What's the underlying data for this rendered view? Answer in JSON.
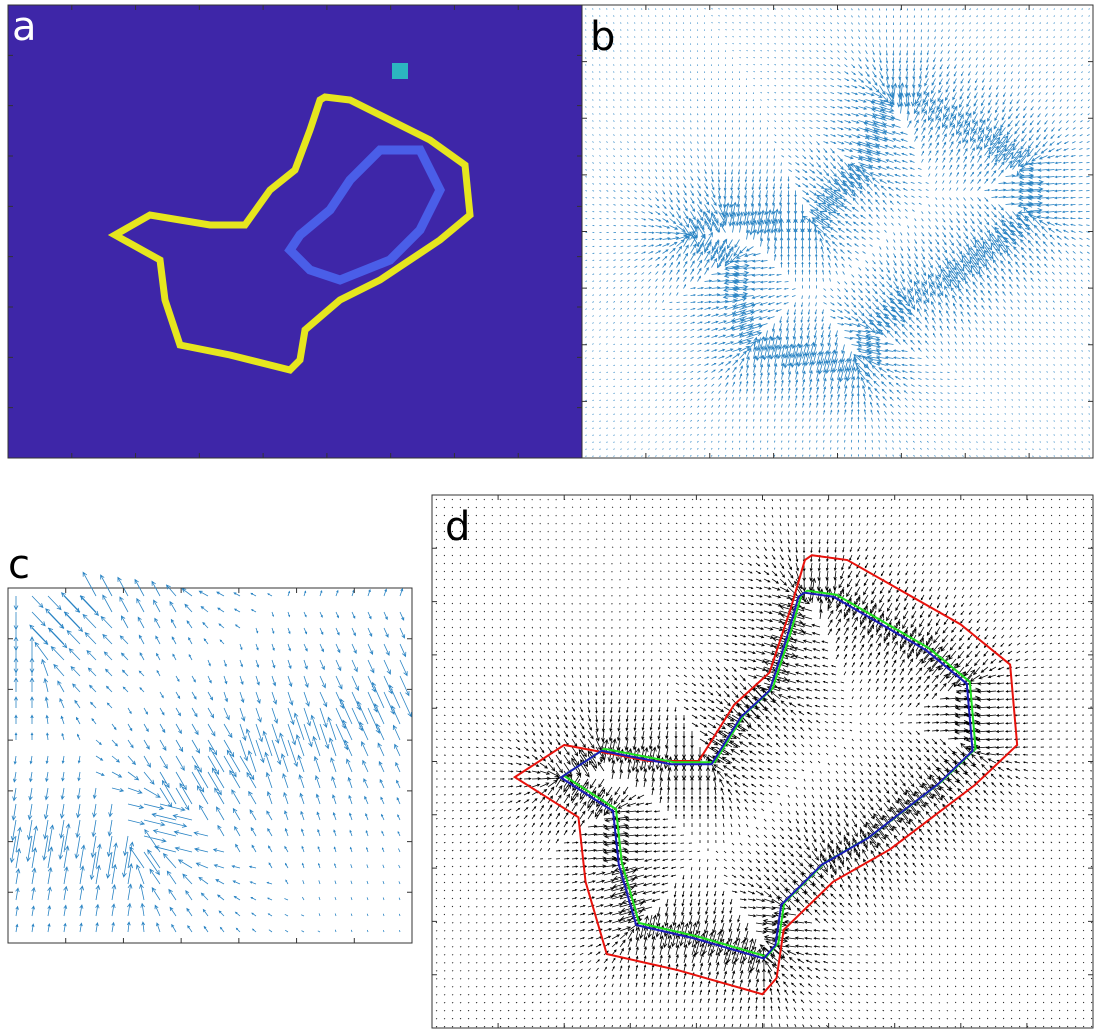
{
  "panels": {
    "a": {
      "label": "a"
    },
    "b": {
      "label": "b"
    },
    "c": {
      "label": "c"
    },
    "d": {
      "label": "d"
    }
  }
}
